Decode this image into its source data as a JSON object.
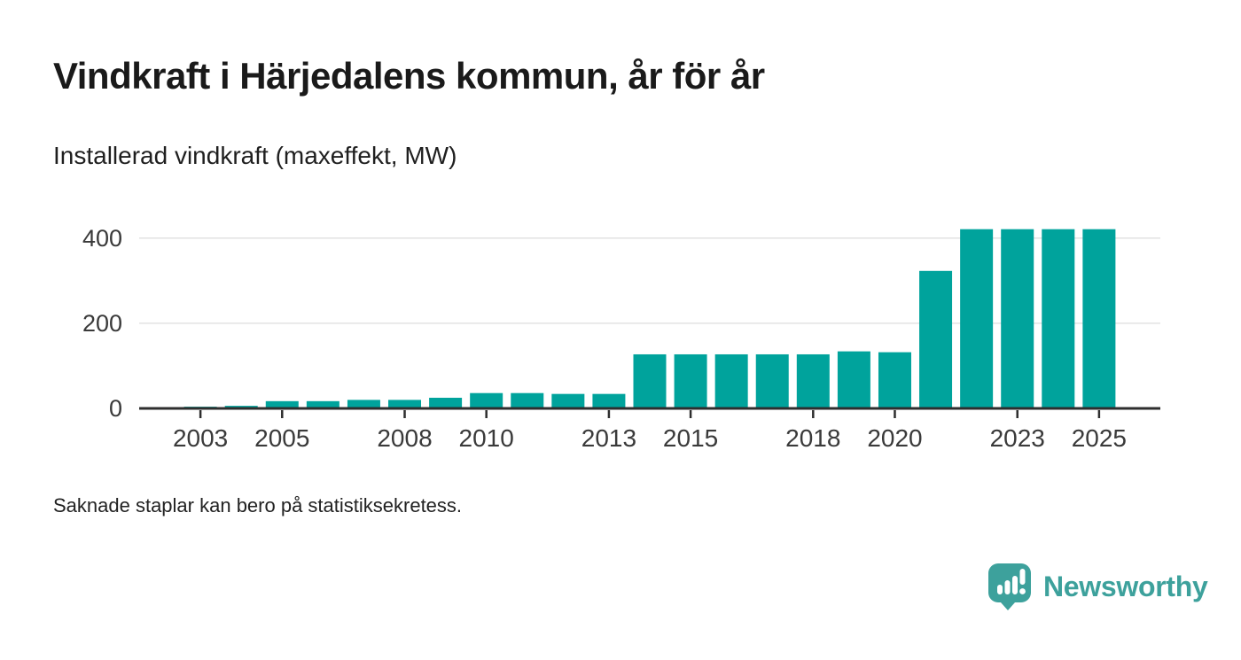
{
  "header": {
    "title": "Vindkraft i Härjedalens kommun, år för år",
    "subtitle": "Installerad vindkraft (maxeffekt, MW)"
  },
  "footnote": "Saknade staplar kan bero på statistiksekretess.",
  "brand": {
    "name": "Newsworthy",
    "icon": "newsworthy-speech-bubble-bars-icon",
    "color": "#3da19c"
  },
  "chart_data": {
    "type": "bar",
    "title": "Vindkraft i Härjedalens kommun, år för år",
    "subtitle": "Installerad vindkraft (maxeffekt, MW)",
    "unit": "MW",
    "categories": [
      2002,
      2003,
      2004,
      2005,
      2006,
      2007,
      2008,
      2009,
      2010,
      2011,
      2012,
      2013,
      2014,
      2015,
      2016,
      2017,
      2018,
      2019,
      2020,
      2021,
      2022,
      2023,
      2024,
      2025
    ],
    "values": [
      null,
      4,
      6,
      17,
      17,
      20,
      20,
      25,
      36,
      36,
      34,
      34,
      127,
      127,
      127,
      127,
      127,
      134,
      132,
      323,
      421,
      421,
      421,
      421
    ],
    "missing_years": [
      2002
    ],
    "y_ticks": [
      0,
      200,
      400
    ],
    "x_tick_years": [
      2003,
      2005,
      2008,
      2010,
      2013,
      2015,
      2018,
      2020,
      2023,
      2025
    ],
    "xlim": [
      2002,
      2026
    ],
    "ylim": [
      0,
      450
    ],
    "bar_color": "#00a39c",
    "grid": "horizontal",
    "legend": "none",
    "note": "Saknade staplar kan bero på statistiksekretess."
  }
}
